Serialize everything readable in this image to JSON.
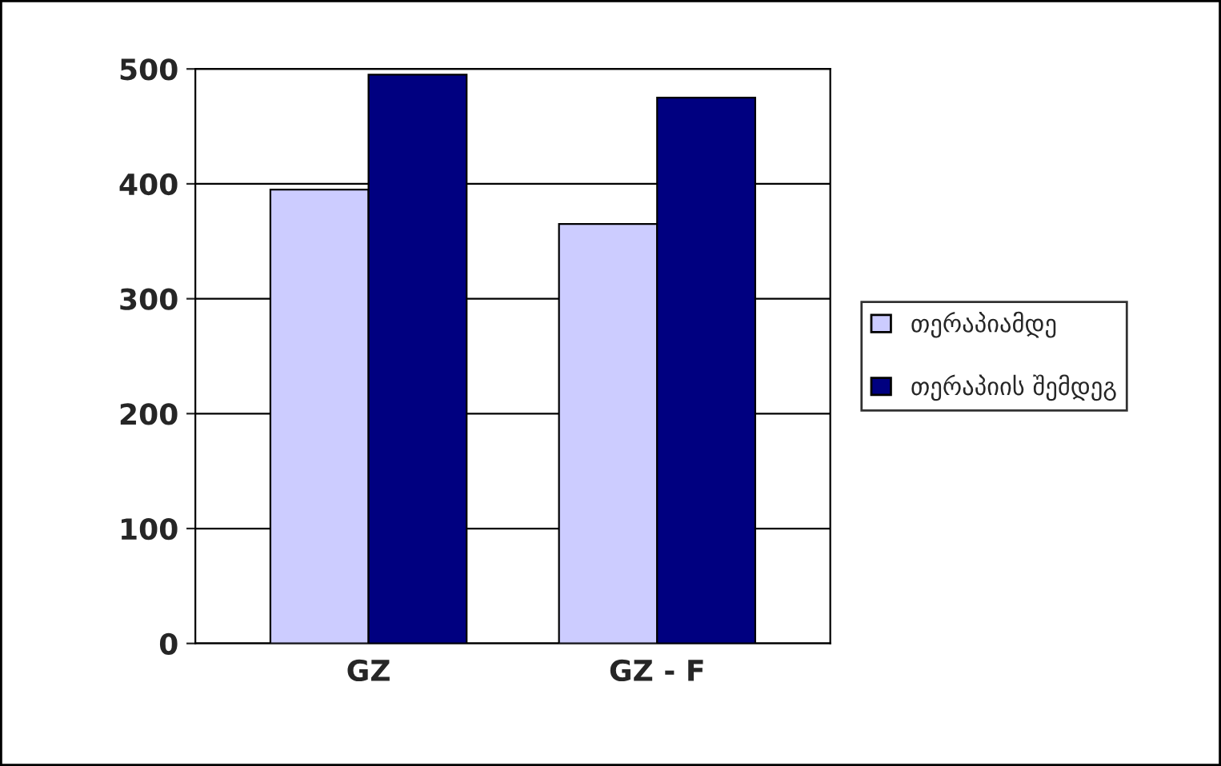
{
  "chart_data": {
    "type": "bar",
    "categories": [
      "GZ",
      "GZ - F"
    ],
    "series": [
      {
        "name": "თერაპიამდე",
        "color": "#ccccff",
        "values": [
          395,
          365
        ]
      },
      {
        "name": "თერაპიის შემდეგ",
        "color": "#000080",
        "values": [
          495,
          475
        ]
      }
    ],
    "ylim": [
      0,
      500
    ],
    "yticks": [
      0,
      100,
      200,
      300,
      400,
      500
    ],
    "grid": "y",
    "legend": "right"
  }
}
